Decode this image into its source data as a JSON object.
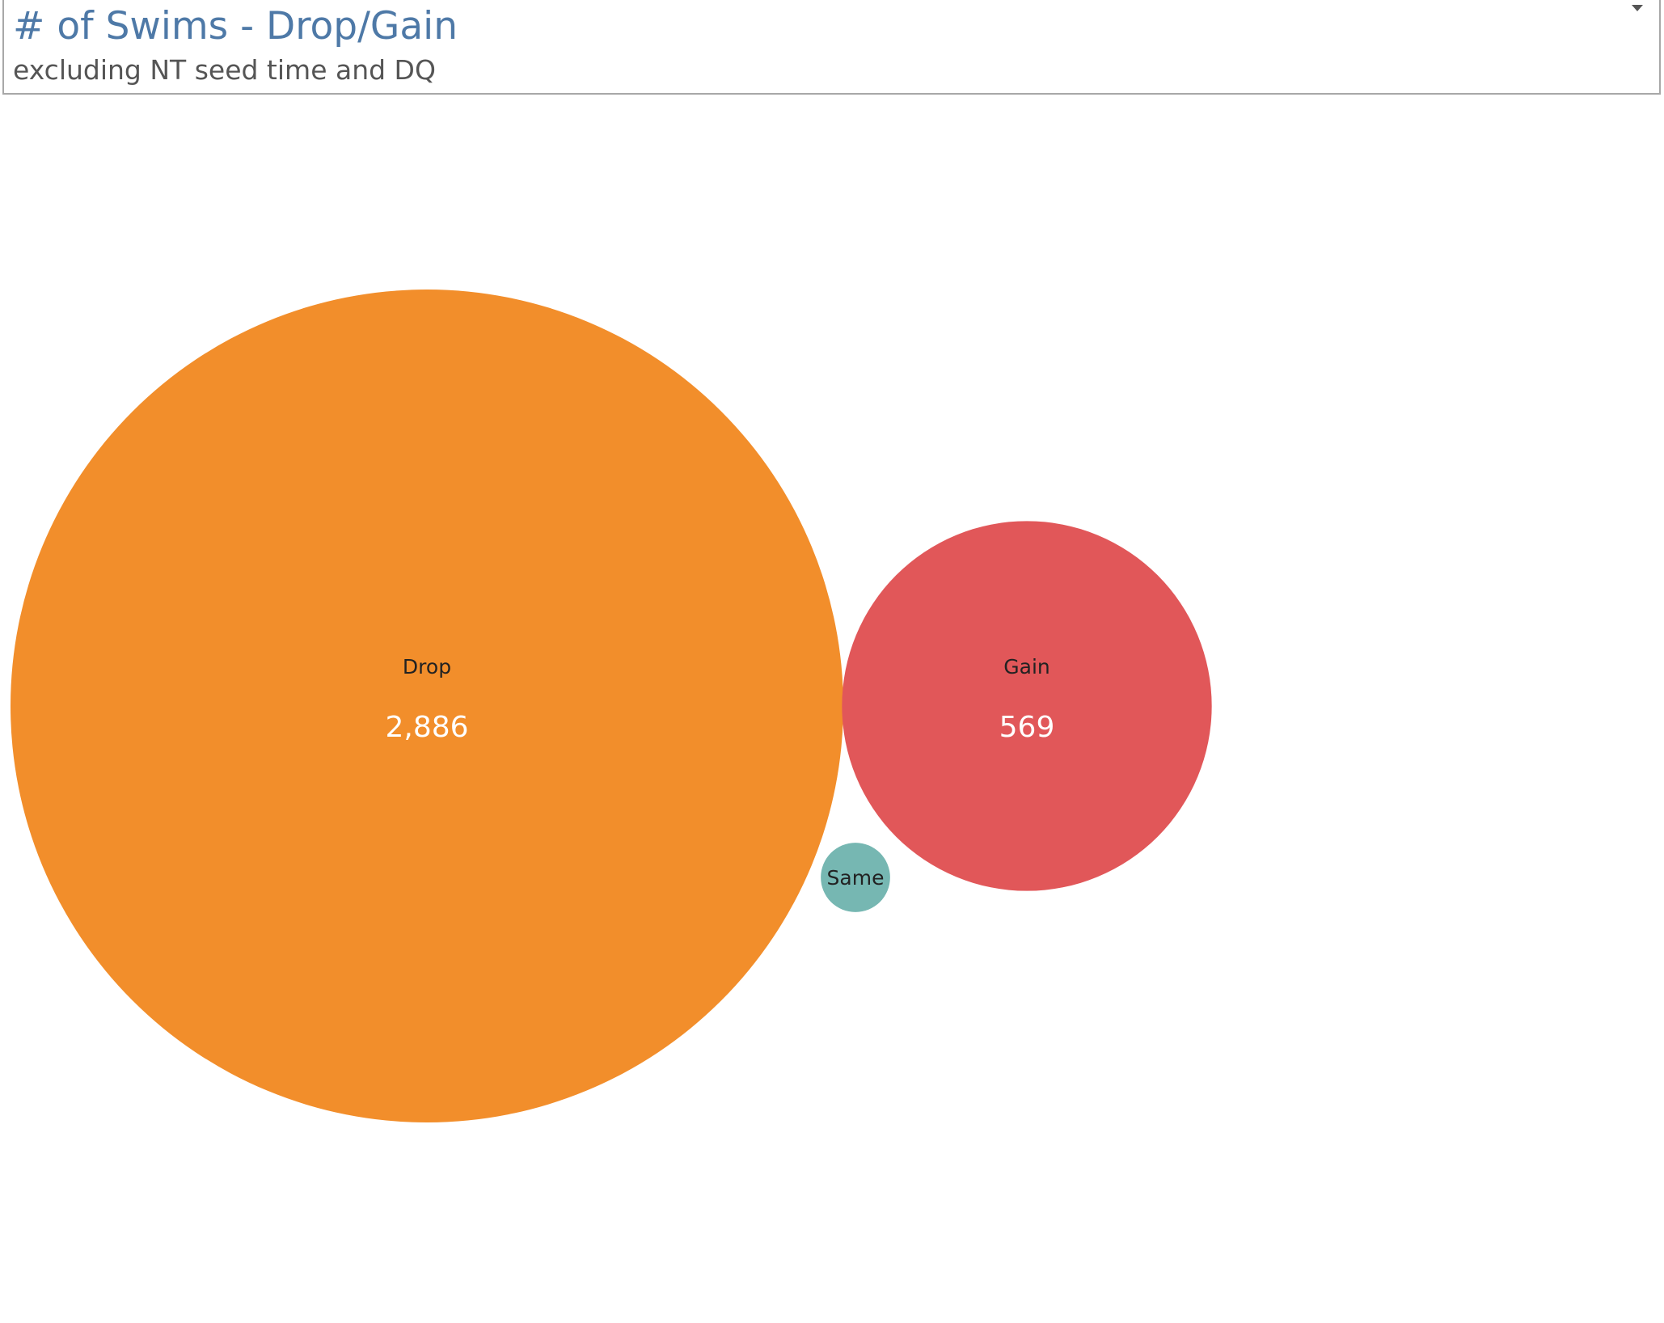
{
  "header": {
    "title": "# of Swims - Drop/Gain",
    "subtitle": "excluding NT seed time and DQ",
    "menu_icon": "caret-down-icon"
  },
  "chart_data": {
    "type": "packed-bubble",
    "size_measure": "# of Swims",
    "legend": "none",
    "grid": false,
    "bubbles": [
      {
        "name": "Drop",
        "value": 2886,
        "value_label": "2,886",
        "color": "#f28e2b",
        "show_value": true
      },
      {
        "name": "Gain",
        "value": 569,
        "value_label": "569",
        "color": "#e15759",
        "show_value": true
      },
      {
        "name": "Same",
        "value": 20,
        "value_label": "",
        "color": "#76b7b2",
        "show_value": false
      }
    ]
  }
}
